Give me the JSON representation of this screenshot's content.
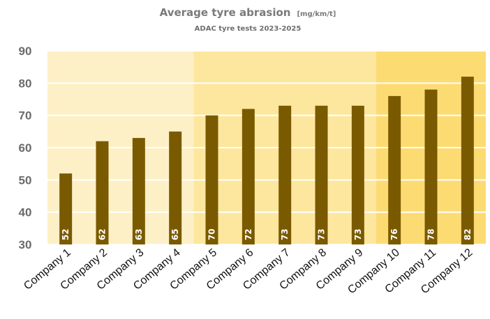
{
  "chart_data": {
    "type": "bar",
    "title": "Average tyre abrasion",
    "title_unit": "[mg/km/t]",
    "subtitle": "ADAC tyre tests 2023-2025",
    "xlabel": "",
    "ylabel": "",
    "categories": [
      "Company 1",
      "Company 2",
      "Company 3",
      "Company 4",
      "Company 5",
      "Company 6",
      "Company 7",
      "Company 8",
      "Company 9",
      "Company 10",
      "Company 11",
      "Company 12"
    ],
    "values": [
      52,
      62,
      63,
      65,
      70,
      72,
      73,
      73,
      73,
      76,
      78,
      82
    ],
    "ylim": [
      30,
      90
    ],
    "yticks": [
      30,
      40,
      50,
      60,
      70,
      80,
      90
    ],
    "grid": true,
    "data_labels": "inside-bottom-rotated",
    "background_bands": [
      {
        "from_category": "Company 1",
        "to_category": "Company 4",
        "color": "#fdf0c6"
      },
      {
        "from_category": "Company 5",
        "to_category": "Company 9",
        "color": "#fde79e"
      },
      {
        "from_category": "Company 10",
        "to_category": "Company 12",
        "color": "#fddb73"
      }
    ],
    "colors": {
      "bar": "#7a5a00",
      "gridline": "#ffffff",
      "data_label": "#ffffff"
    }
  }
}
